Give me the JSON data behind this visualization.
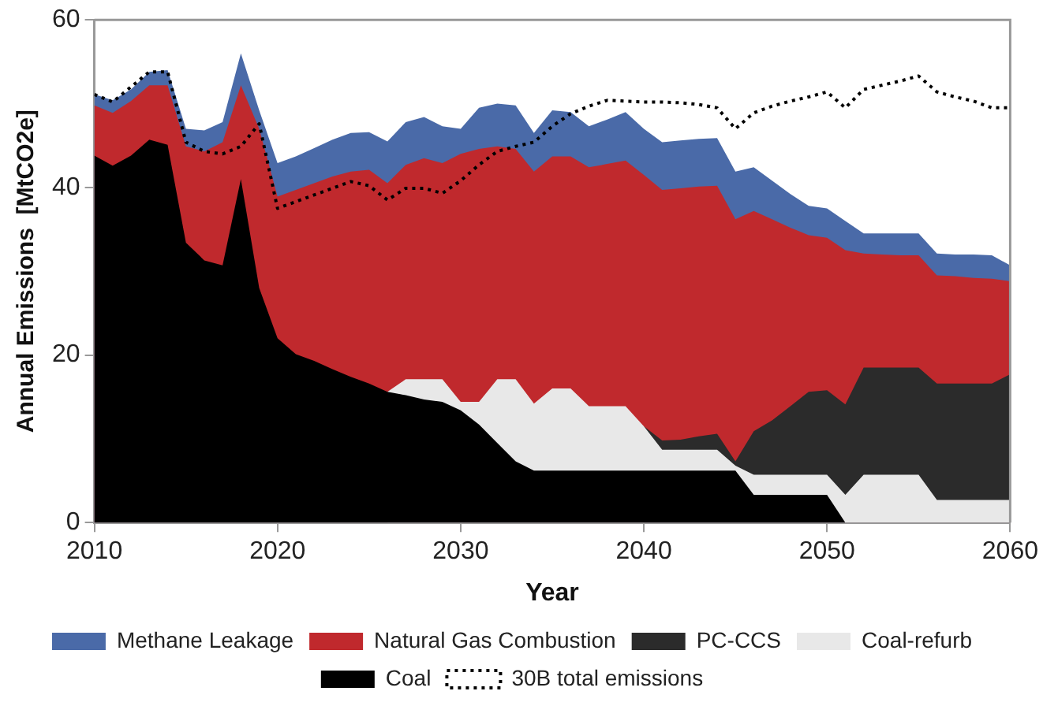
{
  "chart_data": {
    "type": "area",
    "xlabel": "Year",
    "ylabel": "Annual Emissions  [MtCO2e]",
    "x": [
      2010,
      2011,
      2012,
      2013,
      2014,
      2015,
      2016,
      2017,
      2018,
      2019,
      2020,
      2021,
      2022,
      2023,
      2024,
      2025,
      2026,
      2027,
      2028,
      2029,
      2030,
      2031,
      2032,
      2033,
      2034,
      2035,
      2036,
      2037,
      2038,
      2039,
      2040,
      2041,
      2042,
      2043,
      2044,
      2045,
      2046,
      2047,
      2048,
      2049,
      2050,
      2051,
      2052,
      2053,
      2054,
      2055,
      2056,
      2057,
      2058,
      2059,
      2060
    ],
    "xlim": [
      2010,
      2060
    ],
    "xticks": [
      2010,
      2020,
      2030,
      2040,
      2050,
      2060
    ],
    "ylim": [
      0,
      60
    ],
    "yticks": [
      0,
      20,
      40,
      60
    ],
    "stacked": true,
    "legend": "bottom",
    "grid": false,
    "marker": "none",
    "series": [
      {
        "name": "Coal",
        "color": "#000000",
        "type": "area",
        "values": [
          43.8,
          42.6,
          43.8,
          45.7,
          45.1,
          33.4,
          31.3,
          30.7,
          41.0,
          28.0,
          22.0,
          20.1,
          19.3,
          18.3,
          17.4,
          16.6,
          15.6,
          15.2,
          14.7,
          14.4,
          13.4,
          11.7,
          9.5,
          7.3,
          6.2,
          6.2,
          6.2,
          6.2,
          6.2,
          6.2,
          6.2,
          6.2,
          6.2,
          6.2,
          6.2,
          6.2,
          3.3,
          3.3,
          3.3,
          3.3,
          3.3,
          0,
          null,
          null,
          null,
          null,
          null,
          null,
          null,
          null,
          null
        ]
      },
      {
        "name": "Coal-refurb",
        "color": "#e8e8e8",
        "type": "area",
        "values": [
          null,
          null,
          null,
          null,
          null,
          null,
          null,
          null,
          null,
          null,
          null,
          null,
          null,
          null,
          null,
          null,
          0,
          1.9,
          2.4,
          2.7,
          1.0,
          2.7,
          7.6,
          9.8,
          8.0,
          9.8,
          9.8,
          7.7,
          7.7,
          7.7,
          5.3,
          2.5,
          2.5,
          2.5,
          2.5,
          0.6,
          2.4,
          2.4,
          2.4,
          2.4,
          2.4,
          3.3,
          5.7,
          5.7,
          5.7,
          5.7,
          2.7,
          2.7,
          2.7,
          2.7,
          2.7
        ]
      },
      {
        "name": "PC-CCS",
        "color": "#2b2b2b",
        "type": "area",
        "values": [
          null,
          null,
          null,
          null,
          null,
          null,
          null,
          null,
          null,
          null,
          null,
          null,
          null,
          null,
          null,
          null,
          null,
          null,
          null,
          null,
          null,
          null,
          null,
          null,
          null,
          null,
          null,
          null,
          null,
          null,
          0,
          1.1,
          1.2,
          1.6,
          1.9,
          0.5,
          5.2,
          6.5,
          8.2,
          9.9,
          10.1,
          10.8,
          12.8,
          12.8,
          12.8,
          12.8,
          13.9,
          13.9,
          13.9,
          13.9,
          15.0
        ]
      },
      {
        "name": "Natural Gas Combustion",
        "color": "#c0292d",
        "type": "area",
        "values": [
          6.0,
          6.3,
          6.5,
          6.5,
          7.1,
          11.5,
          13.0,
          14.7,
          11.2,
          19.0,
          16.9,
          19.6,
          21.2,
          23.0,
          24.5,
          25.5,
          24.9,
          25.6,
          26.4,
          25.8,
          29.6,
          30.2,
          27.8,
          27.5,
          27.7,
          27.7,
          27.7,
          28.5,
          28.9,
          29.3,
          30.0,
          29.9,
          30.0,
          29.8,
          29.6,
          28.9,
          26.3,
          24.0,
          21.3,
          18.7,
          18.2,
          18.4,
          13.6,
          13.5,
          13.4,
          13.4,
          12.9,
          12.8,
          12.6,
          12.5,
          11.1
        ]
      },
      {
        "name": "Methane Leakage",
        "color": "#4a6aa8",
        "type": "area",
        "values": [
          1.3,
          1.5,
          1.4,
          1.6,
          1.8,
          2.1,
          2.5,
          2.4,
          3.8,
          2.2,
          4.0,
          4.0,
          4.2,
          4.4,
          4.6,
          4.5,
          5.0,
          5.1,
          4.9,
          4.4,
          3.0,
          4.9,
          5.1,
          5.2,
          4.6,
          5.5,
          5.3,
          4.9,
          5.3,
          5.8,
          5.5,
          5.7,
          5.7,
          5.7,
          5.7,
          5.7,
          5.2,
          4.6,
          4.0,
          3.5,
          3.5,
          3.5,
          2.4,
          2.5,
          2.6,
          2.6,
          2.6,
          2.6,
          2.8,
          2.8,
          1.9
        ]
      },
      {
        "name": "30B total emissions",
        "color": "#000000",
        "type": "line",
        "line_style": "dotted",
        "values": [
          51.1,
          50.2,
          52.0,
          53.8,
          53.8,
          45.4,
          44.3,
          44.0,
          44.9,
          47.6,
          37.5,
          38.3,
          39.1,
          39.9,
          40.7,
          40.2,
          38.5,
          39.9,
          39.9,
          39.3,
          40.8,
          42.7,
          44.3,
          44.9,
          45.4,
          47.3,
          48.8,
          49.7,
          50.4,
          50.3,
          50.2,
          50.2,
          50.1,
          49.9,
          49.5,
          47.0,
          48.9,
          49.7,
          50.3,
          50.8,
          51.4,
          49.5,
          51.7,
          52.2,
          52.7,
          53.3,
          51.4,
          50.8,
          50.3,
          49.5,
          49.5
        ]
      }
    ]
  }
}
